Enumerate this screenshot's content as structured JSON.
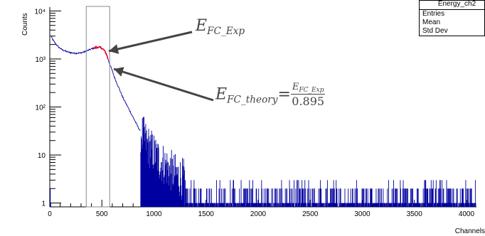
{
  "chart_data": {
    "type": "histogram",
    "ylabel": "Counts",
    "xlabel": "Channels",
    "xlim": [
      0,
      4096
    ],
    "ylim": [
      1,
      10000
    ],
    "yscale": "log",
    "x_ticks": [
      "0",
      "500",
      "1000",
      "1500",
      "2000",
      "2500",
      "3000",
      "3500",
      "4000"
    ],
    "x_tick_values": [
      0,
      500,
      1000,
      1500,
      2000,
      2500,
      3000,
      3500,
      4000
    ],
    "y_ticks": [
      "1",
      "10",
      "10²",
      "10³",
      "10⁴"
    ],
    "y_tick_values": [
      1,
      10,
      100,
      1000,
      10000
    ],
    "series_color": "#0000a0",
    "highlight_color": "#e00030",
    "highlight_range": [
      420,
      560
    ],
    "box_range": [
      350,
      575
    ],
    "spectrum_profile": [
      [
        10,
        3000
      ],
      [
        40,
        2300
      ],
      [
        80,
        1800
      ],
      [
        120,
        1550
      ],
      [
        170,
        1400
      ],
      [
        230,
        1320
      ],
      [
        290,
        1330
      ],
      [
        340,
        1420
      ],
      [
        380,
        1550
      ],
      [
        420,
        1680
      ],
      [
        460,
        1760
      ],
      [
        490,
        1720
      ],
      [
        520,
        1550
      ],
      [
        545,
        1250
      ],
      [
        565,
        900
      ],
      [
        590,
        650
      ],
      [
        620,
        420
      ],
      [
        660,
        260
      ],
      [
        700,
        160
      ],
      [
        760,
        90
      ],
      [
        820,
        50
      ],
      [
        880,
        28
      ],
      [
        950,
        15
      ],
      [
        1050,
        8
      ],
      [
        1200,
        4
      ],
      [
        1400,
        2.2
      ],
      [
        1700,
        1.5
      ],
      [
        2200,
        1.2
      ],
      [
        2800,
        1.1
      ],
      [
        3500,
        1.05
      ],
      [
        4096,
        1
      ]
    ],
    "stats": {
      "title": "Energy_ch2",
      "labels": [
        "Entries",
        "Mean",
        "Std Dev"
      ]
    }
  },
  "annotations": {
    "exp": {
      "base": "E",
      "sub": "FC_Exp"
    },
    "theory": {
      "base": "E",
      "sub": "FC_theory",
      "eq": "=",
      "num_base": "E",
      "num_sub": "FC_Exp",
      "den": "0.895"
    }
  }
}
